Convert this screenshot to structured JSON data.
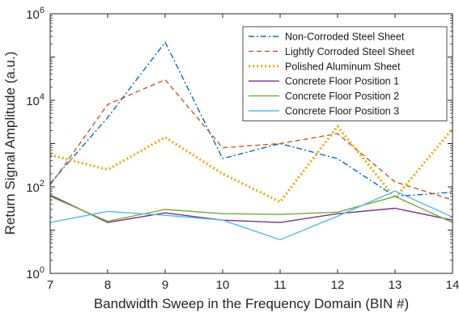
{
  "chart_data": {
    "type": "line",
    "xlabel": "Bandwidth Sweep in the Frequency Domain (BIN #)",
    "ylabel": "Return Signal Amplitude (a.u.)",
    "xlim": [
      7,
      14
    ],
    "ylim": [
      1,
      1000000
    ],
    "yscale": "log",
    "x_ticks": [
      7,
      8,
      9,
      10,
      11,
      12,
      13,
      14
    ],
    "y_ticks": [
      {
        "value": 1,
        "base": "10",
        "exp": "0"
      },
      {
        "value": 100,
        "base": "10",
        "exp": "2"
      },
      {
        "value": 10000,
        "base": "10",
        "exp": "4"
      },
      {
        "value": 1000000,
        "base": "10",
        "exp": "6"
      }
    ],
    "grid": false,
    "legend_position": "top-right",
    "x": [
      7,
      8,
      9,
      10,
      11,
      12,
      13,
      14
    ],
    "series": [
      {
        "name": "Non-Corroded Steel Sheet",
        "color": "#0072BD",
        "dash": "dashdot",
        "values": [
          120,
          4000,
          220000,
          450,
          1000,
          450,
          60,
          75
        ]
      },
      {
        "name": "Lightly Corroded Steel Sheet",
        "color": "#D95319",
        "dash": "dashed",
        "values": [
          110,
          8000,
          30000,
          800,
          1000,
          1700,
          130,
          50
        ]
      },
      {
        "name": "Polished Aluminum Sheet",
        "color": "#EDB120",
        "dash": "dotted",
        "values": [
          550,
          250,
          1400,
          200,
          45,
          2500,
          55,
          2200
        ]
      },
      {
        "name": "Concrete Floor Position 1",
        "color": "#7E2F8E",
        "dash": "solid",
        "values": [
          65,
          15,
          25,
          17,
          15,
          24,
          32,
          17
        ]
      },
      {
        "name": "Concrete Floor Position 2",
        "color": "#77AC30",
        "dash": "solid",
        "values": [
          60,
          16,
          30,
          24,
          23,
          26,
          60,
          15
        ]
      },
      {
        "name": "Concrete Floor Position 3",
        "color": "#4DBEEE",
        "dash": "solid",
        "values": [
          15,
          27,
          22,
          17,
          6,
          21,
          80,
          20
        ]
      }
    ]
  }
}
